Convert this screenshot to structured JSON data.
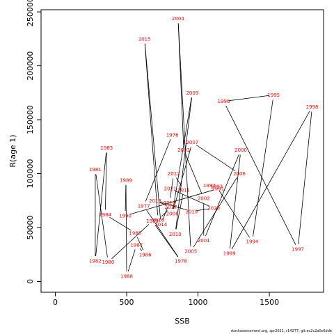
{
  "chart_data": {
    "type": "line",
    "xlabel": "SSB",
    "ylabel": "R(age 1)",
    "xlim": [
      -100,
      1880
    ],
    "ylim": [
      -10000,
      252000
    ],
    "xticks": [
      0,
      500,
      1000,
      1500
    ],
    "yticks": [
      0,
      50000,
      100000,
      150000,
      200000,
      250000
    ],
    "line_color": "#000000",
    "label_color": "#ff0000",
    "points": [
      {
        "year": "1976",
        "x": 820,
        "y": 136000
      },
      {
        "year": "1977",
        "x": 620,
        "y": 70000
      },
      {
        "year": "1978",
        "x": 880,
        "y": 19000
      },
      {
        "year": "1979",
        "x": 680,
        "y": 56000
      },
      {
        "year": "1980",
        "x": 370,
        "y": 18000
      },
      {
        "year": "1981",
        "x": 280,
        "y": 104000
      },
      {
        "year": "1982",
        "x": 280,
        "y": 19000
      },
      {
        "year": "1983",
        "x": 360,
        "y": 124000
      },
      {
        "year": "1984",
        "x": 350,
        "y": 62000
      },
      {
        "year": "1985",
        "x": 560,
        "y": 45000
      },
      {
        "year": "1986",
        "x": 630,
        "y": 25000
      },
      {
        "year": "1987",
        "x": 570,
        "y": 34000
      },
      {
        "year": "1988",
        "x": 500,
        "y": 5000
      },
      {
        "year": "1989",
        "x": 495,
        "y": 94000
      },
      {
        "year": "1990",
        "x": 490,
        "y": 61000
      },
      {
        "year": "1991",
        "x": 1140,
        "y": 86000
      },
      {
        "year": "1992",
        "x": 1080,
        "y": 89000
      },
      {
        "year": "1993",
        "x": 1130,
        "y": 88000
      },
      {
        "year": "1994",
        "x": 1380,
        "y": 37000
      },
      {
        "year": "1995",
        "x": 1530,
        "y": 173000
      },
      {
        "year": "1996",
        "x": 1180,
        "y": 167000
      },
      {
        "year": "1997",
        "x": 1700,
        "y": 30000
      },
      {
        "year": "1998",
        "x": 1800,
        "y": 162000
      },
      {
        "year": "1999",
        "x": 1220,
        "y": 26000
      },
      {
        "year": "2000",
        "x": 1300,
        "y": 122000
      },
      {
        "year": "2001",
        "x": 1040,
        "y": 38000
      },
      {
        "year": "2002",
        "x": 1040,
        "y": 77000
      },
      {
        "year": "2003",
        "x": 900,
        "y": 122000
      },
      {
        "year": "2004",
        "x": 860,
        "y": 244000
      },
      {
        "year": "2005",
        "x": 950,
        "y": 28000
      },
      {
        "year": "2006",
        "x": 1290,
        "y": 100000
      },
      {
        "year": "2007",
        "x": 960,
        "y": 129000
      },
      {
        "year": "2008",
        "x": 820,
        "y": 63000
      },
      {
        "year": "2009",
        "x": 960,
        "y": 175000
      },
      {
        "year": "2010",
        "x": 840,
        "y": 44000
      },
      {
        "year": "2011",
        "x": 900,
        "y": 85000
      },
      {
        "year": "2012",
        "x": 830,
        "y": 100000
      },
      {
        "year": "2013",
        "x": 800,
        "y": 73000
      },
      {
        "year": "2014",
        "x": 740,
        "y": 53000
      },
      {
        "year": "2015",
        "x": 625,
        "y": 225000
      },
      {
        "year": "2016",
        "x": 720,
        "y": 57000
      },
      {
        "year": "2017",
        "x": 810,
        "y": 69000
      },
      {
        "year": "2018",
        "x": 700,
        "y": 75000
      },
      {
        "year": "2019",
        "x": 955,
        "y": 65000
      },
      {
        "year": "2020",
        "x": 1110,
        "y": 68000
      },
      {
        "year": "2021",
        "x": 805,
        "y": 86000
      }
    ]
  },
  "footer": {
    "text": "stockassessment.org, spr2021, r14277, git:ec2c2a0c6dde"
  }
}
